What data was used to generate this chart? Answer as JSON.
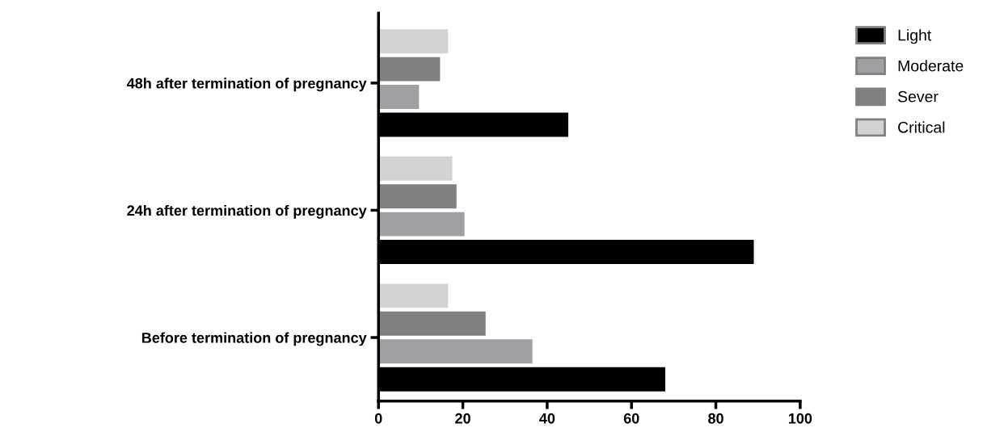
{
  "chart_data": {
    "type": "bar",
    "orientation": "horizontal",
    "categories": [
      "48h after termination of pregnancy",
      "24h after termination of pregnancy",
      "Before termination of pregnancy"
    ],
    "series": [
      {
        "name": "Light",
        "color": "#000000",
        "values": [
          45,
          89,
          68
        ]
      },
      {
        "name": "Moderate",
        "color": "#a0a0a4",
        "values": [
          9.6,
          20.4,
          36.5
        ]
      },
      {
        "name": "Sever",
        "color": "#808080",
        "values": [
          14.6,
          18.5,
          25.4
        ]
      },
      {
        "name": "Critical",
        "color": "#d3d3d3",
        "values": [
          16.5,
          17.5,
          16.5
        ]
      }
    ],
    "xlim": [
      0,
      100
    ],
    "xticks": [
      0,
      20,
      40,
      60,
      80,
      100
    ],
    "grid": false,
    "legend": "right"
  }
}
